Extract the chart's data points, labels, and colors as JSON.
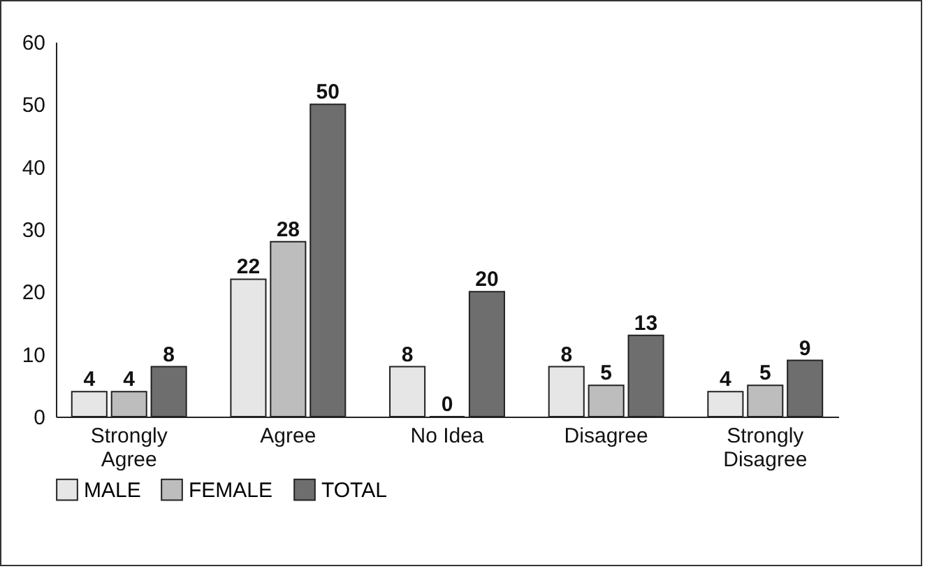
{
  "chart_data": {
    "type": "bar",
    "categories": [
      "Strongly Agree",
      "Agree",
      "No Idea",
      "Disagree",
      "Strongly Disagree"
    ],
    "series": [
      {
        "name": "MALE",
        "color": "#e6e6e6",
        "values": [
          4,
          22,
          8,
          8,
          4
        ]
      },
      {
        "name": "FEMALE",
        "color": "#bdbdbd",
        "values": [
          4,
          28,
          0,
          5,
          5
        ]
      },
      {
        "name": "TOTAL",
        "color": "#6e6e6e",
        "values": [
          8,
          50,
          20,
          13,
          9
        ]
      }
    ],
    "ylim": [
      0,
      60
    ],
    "yticks": [
      0,
      10,
      20,
      30,
      40,
      50,
      60
    ],
    "grid": false,
    "legend": "bottom",
    "data_labels": true
  }
}
